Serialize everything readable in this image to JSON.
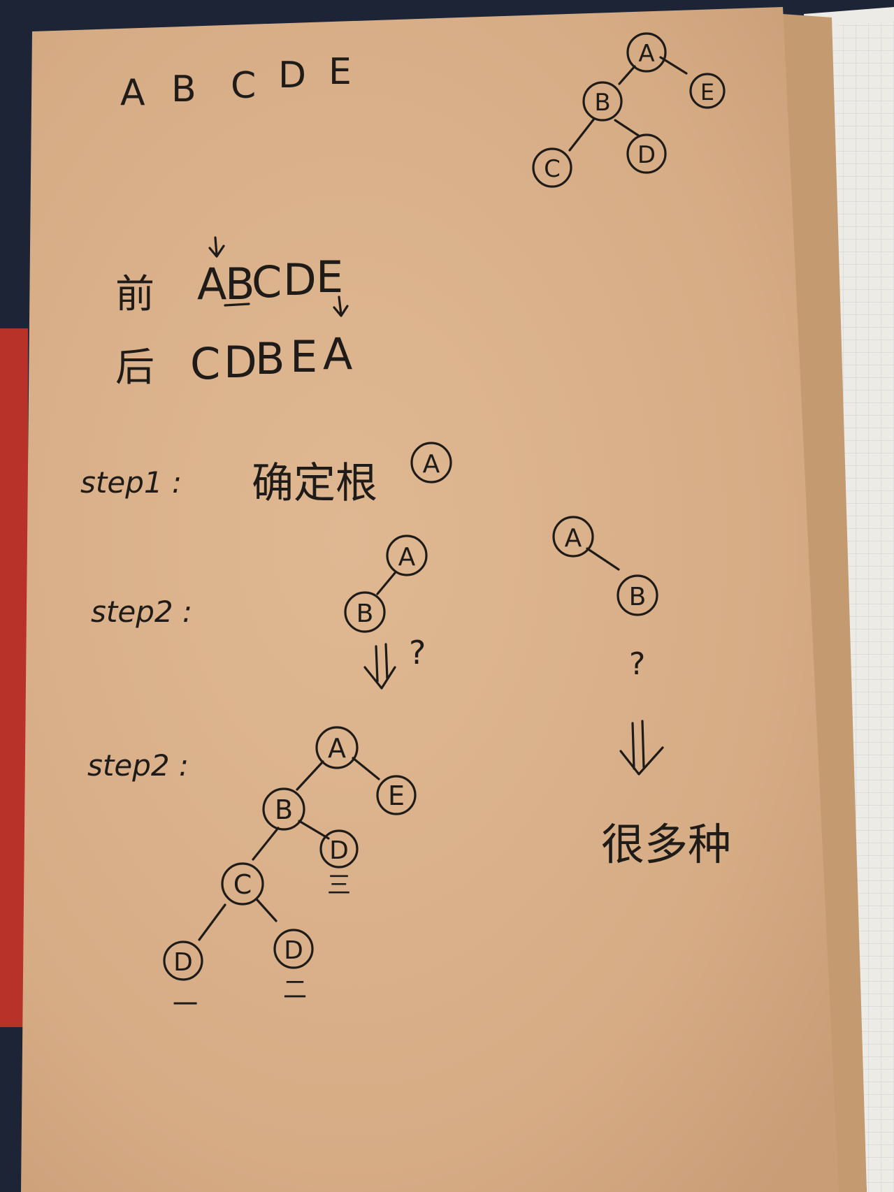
{
  "top_letters": [
    "A",
    "B",
    "C",
    "D",
    "E"
  ],
  "preorder": {
    "label": "前",
    "sequence": [
      "A",
      "B",
      "C",
      "D",
      "E"
    ]
  },
  "postorder": {
    "label": "后",
    "sequence": [
      "C",
      "D",
      "B",
      "E",
      "A"
    ]
  },
  "step1": {
    "label": "step1 :",
    "text": "确定根",
    "node": "A"
  },
  "step2": {
    "label": "step2 :",
    "left_tree": {
      "root": "A",
      "child": "B",
      "mark": "?"
    },
    "right_tree": {
      "root": "A",
      "child": "B",
      "mark": "?"
    }
  },
  "step3": {
    "label": "step2 :",
    "tree": {
      "A": "A",
      "B": "B",
      "E": "E",
      "C": "C",
      "D_under_B": "D",
      "D_under_C_left": "D",
      "D_under_C_right": "D"
    },
    "underline_marks": [
      "三",
      "一",
      "二"
    ],
    "conclusion": "很多种"
  },
  "reference_tree": {
    "A": "A",
    "B": "B",
    "C": "C",
    "D": "D",
    "E": "E"
  },
  "colors": {
    "paper": "#d9b08a",
    "ink": "#1e1b18",
    "background": "#1d2436"
  }
}
